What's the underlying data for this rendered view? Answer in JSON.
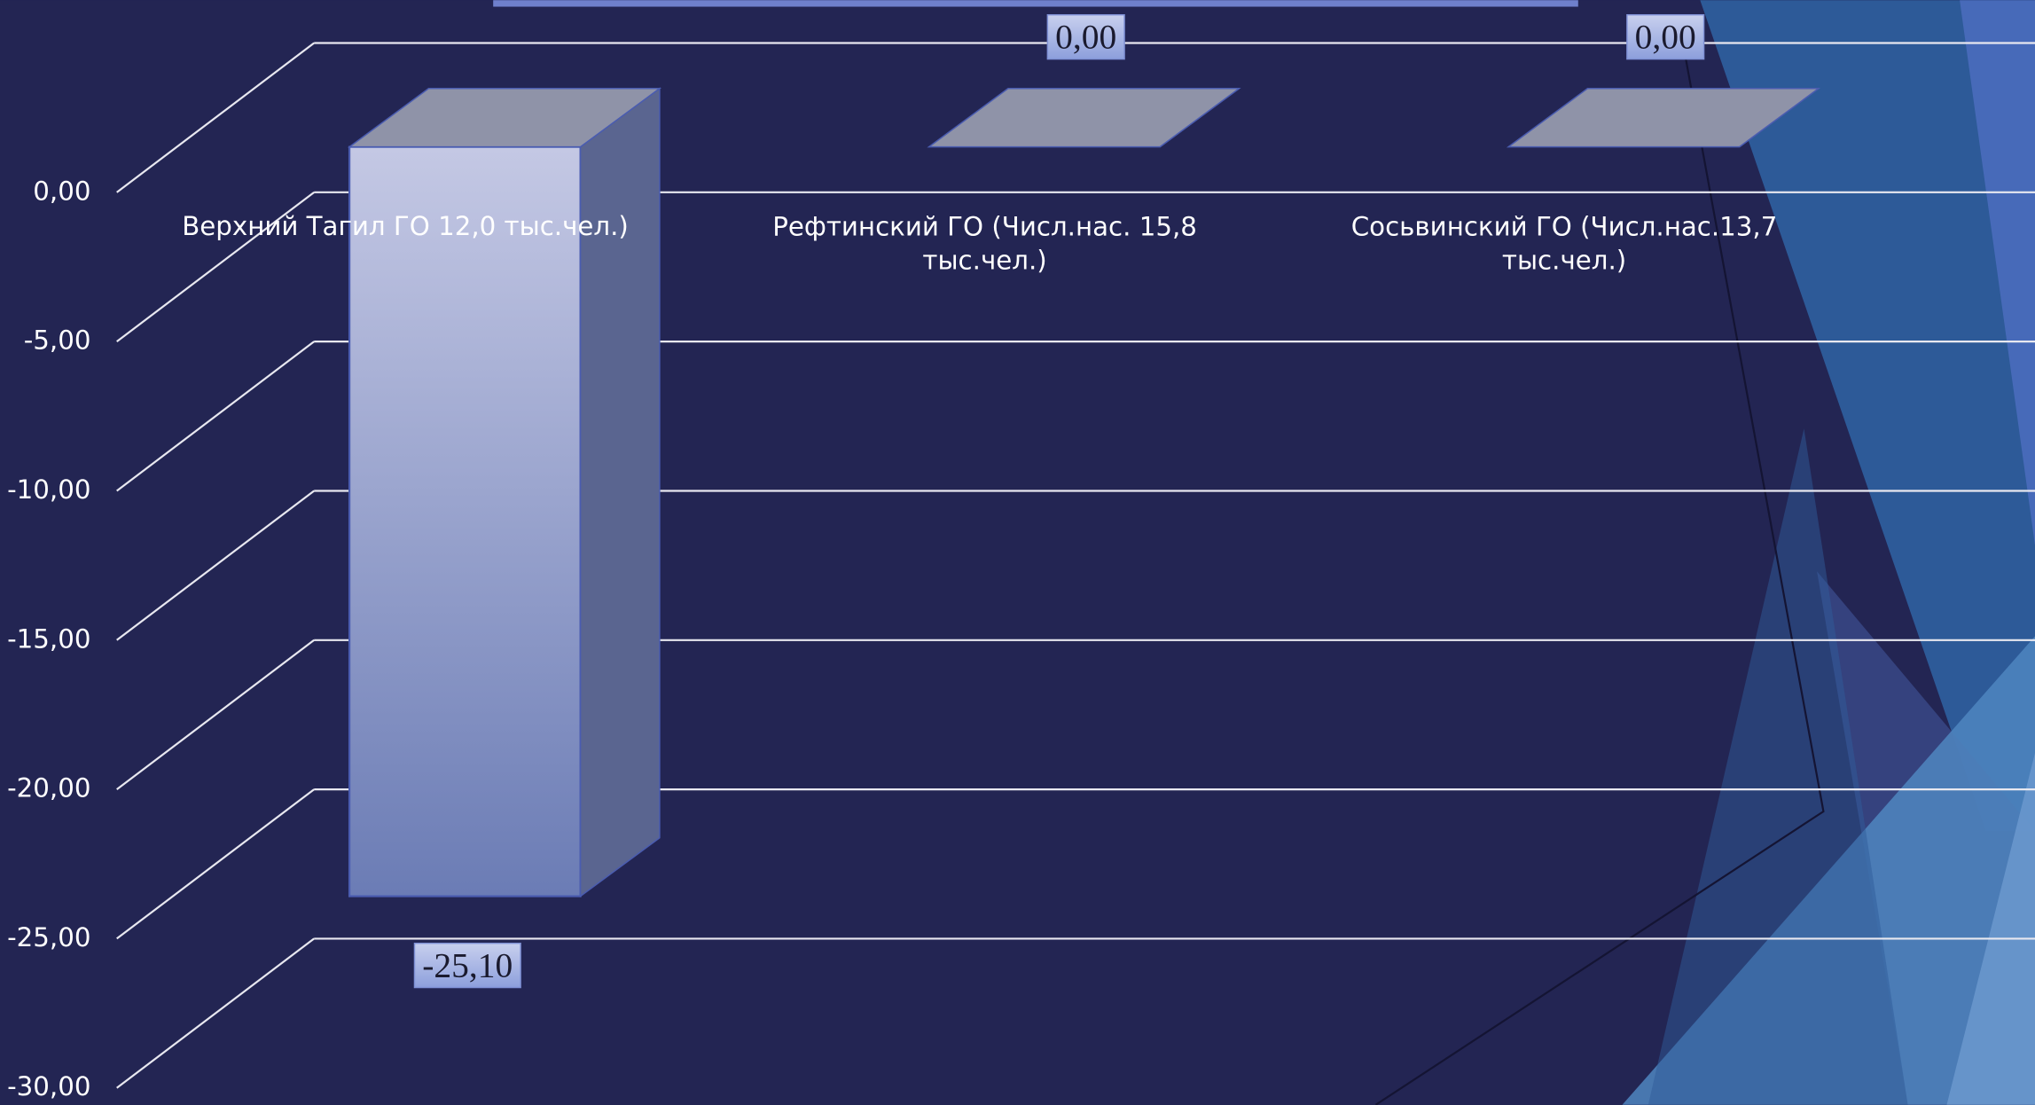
{
  "chart_data": {
    "type": "bar3d",
    "categories": [
      "Верхний Тагил ГО 12,0 тыс.чел.)",
      "Рефтинский ГО (Числ.нас. 15,8 тыс.чел.)",
      "Сосьвинский ГО (Числ.нас.13,7 тыс.чел.)"
    ],
    "values": [
      -25.1,
      0,
      0
    ],
    "value_labels": [
      "-25,10",
      "0,00",
      "0,00"
    ],
    "color": "#8f9ad0",
    "ylim": [
      -30,
      0
    ],
    "yticks": [
      {
        "value": 0,
        "label": "0,00"
      },
      {
        "value": -5,
        "label": "-5,00"
      },
      {
        "value": -10,
        "label": "-10,00"
      },
      {
        "value": -15,
        "label": "-15,00"
      },
      {
        "value": -20,
        "label": "-20,00"
      },
      {
        "value": -25,
        "label": "-25,00"
      },
      {
        "value": -30,
        "label": "-30,00"
      }
    ],
    "grid": true
  }
}
